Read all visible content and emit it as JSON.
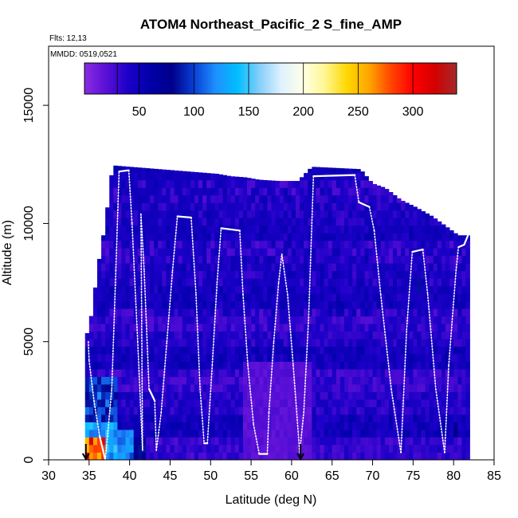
{
  "chart_data": {
    "type": "heatmap",
    "title": "ATOM4 Northeast_Pacific_2 S_fine_AMP",
    "flights_label": "Flts: 12,13",
    "dates_label": "MMDD: 0519,0521",
    "xlabel": "Latitude (deg N)",
    "ylabel": "Altitude (m)",
    "xlim": [
      30,
      85
    ],
    "ylim": [
      0,
      17500
    ],
    "x_ticks": [
      "30",
      "35",
      "40",
      "45",
      "50",
      "55",
      "60",
      "65",
      "70",
      "75",
      "80",
      "85"
    ],
    "y_ticks": [
      "0",
      "5000",
      "10000",
      "15000"
    ],
    "colorbar": {
      "range": [
        0,
        340
      ],
      "ticks": [
        "50",
        "100",
        "150",
        "200",
        "250",
        "300"
      ],
      "colors": [
        "#8a2be2",
        "#5a0fd6",
        "#1c00c8",
        "#0000a8",
        "#00008b",
        "#0a3fd4",
        "#1e90ff",
        "#00bfff",
        "#87cefa",
        "#dff2ff",
        "#ffffe6",
        "#fff68f",
        "#ffd700",
        "#ffa500",
        "#ff4500",
        "#ff0000",
        "#d40000",
        "#a52a2a"
      ],
      "segment_lines": [
        30,
        50,
        100,
        150,
        200,
        250,
        300
      ]
    },
    "column_tops": [
      [
        37.9,
        12450
      ],
      [
        38.2,
        12450
      ],
      [
        50.9,
        12100
      ],
      [
        52.5,
        12000
      ],
      [
        54.4,
        11950
      ],
      [
        56.0,
        11850
      ],
      [
        58.5,
        11800
      ],
      [
        60.8,
        11800
      ],
      [
        62.5,
        12400
      ],
      [
        68.5,
        12300
      ],
      [
        70.0,
        11700
      ],
      [
        71.6,
        11500
      ],
      [
        73.5,
        11000
      ],
      [
        75.3,
        10700
      ],
      [
        77.4,
        10300
      ],
      [
        79.0,
        9900
      ],
      [
        80.6,
        9500
      ],
      [
        82.0,
        9500
      ]
    ],
    "column_left_top": [
      [
        34.5,
        5000
      ],
      [
        35.4,
        6300
      ],
      [
        36.0,
        8000
      ],
      [
        37.0,
        10000
      ],
      [
        37.9,
        12450
      ]
    ],
    "flight_track": [
      [
        34.9,
        5000
      ],
      [
        35.0,
        4200
      ],
      [
        35.6,
        2500
      ],
      [
        36.3,
        1000
      ],
      [
        37.0,
        0
      ],
      [
        37.8,
        3000
      ],
      [
        38.3,
        8000
      ],
      [
        38.7,
        12200
      ],
      [
        39.9,
        12250
      ],
      [
        40.3,
        10000
      ],
      [
        41.0,
        5000
      ],
      [
        41.6,
        400
      ],
      [
        41.4,
        10400
      ],
      [
        41.8,
        8000
      ],
      [
        42.4,
        3000
      ],
      [
        43.1,
        2500
      ],
      [
        43.3,
        400
      ],
      [
        43.9,
        2000
      ],
      [
        44.6,
        5000
      ],
      [
        45.3,
        8000
      ],
      [
        45.9,
        10300
      ],
      [
        47.6,
        10250
      ],
      [
        48.2,
        7000
      ],
      [
        48.7,
        3000
      ],
      [
        49.2,
        700
      ],
      [
        49.6,
        700
      ],
      [
        50.2,
        4000
      ],
      [
        50.8,
        7500
      ],
      [
        51.3,
        9800
      ],
      [
        53.6,
        9700
      ],
      [
        54.0,
        7000
      ],
      [
        54.6,
        4000
      ],
      [
        55.3,
        1500
      ],
      [
        56.0,
        250
      ],
      [
        57.0,
        250
      ],
      [
        57.2,
        2000
      ],
      [
        57.8,
        5000
      ],
      [
        58.4,
        7500
      ],
      [
        58.8,
        8700
      ],
      [
        59.5,
        7000
      ],
      [
        60.2,
        4000
      ],
      [
        61.0,
        300
      ],
      [
        61.5,
        2000
      ],
      [
        62.1,
        6000
      ],
      [
        62.7,
        12000
      ],
      [
        67.8,
        12050
      ],
      [
        68.3,
        10900
      ],
      [
        69.6,
        10700
      ],
      [
        70.2,
        9700
      ],
      [
        71.0,
        7000
      ],
      [
        72.3,
        3000
      ],
      [
        73.5,
        300
      ],
      [
        74.2,
        5500
      ],
      [
        74.9,
        8800
      ],
      [
        76.2,
        8900
      ],
      [
        76.8,
        7000
      ],
      [
        77.8,
        3000
      ],
      [
        78.9,
        300
      ],
      [
        79.4,
        4000
      ],
      [
        80.3,
        8000
      ],
      [
        80.6,
        9000
      ],
      [
        81.3,
        9100
      ],
      [
        81.9,
        9600
      ]
    ],
    "arrows_at_latitude": [
      34.6,
      61.1
    ],
    "grid": false
  }
}
